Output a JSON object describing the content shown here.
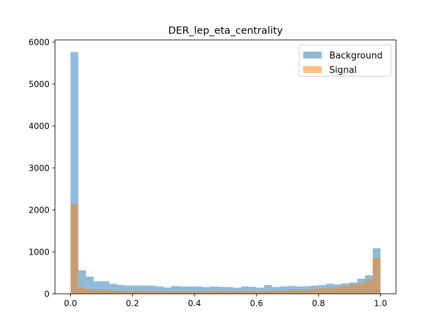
{
  "chart_data": {
    "type": "bar",
    "title": "DER_lep_eta_centrality",
    "xlabel": "",
    "ylabel": "",
    "xlim": [
      -0.05,
      1.05
    ],
    "ylim": [
      0,
      6050
    ],
    "xticks": [
      0.0,
      0.2,
      0.4,
      0.6,
      0.8,
      1.0
    ],
    "xtick_labels": [
      "0.0",
      "0.2",
      "0.4",
      "0.6",
      "0.8",
      "1.0"
    ],
    "yticks": [
      0,
      1000,
      2000,
      3000,
      4000,
      5000,
      6000
    ],
    "ytick_labels": [
      "0",
      "1000",
      "2000",
      "3000",
      "4000",
      "5000",
      "6000"
    ],
    "legend_position": "upper-right",
    "bins": {
      "start": 0.0,
      "end": 1.0,
      "count": 40
    },
    "series": [
      {
        "name": "Background",
        "color": "#1f77b4",
        "alpha": 0.5,
        "values": [
          5760,
          560,
          410,
          300,
          300,
          240,
          210,
          195,
          195,
          195,
          195,
          175,
          150,
          185,
          175,
          175,
          175,
          160,
          175,
          165,
          160,
          145,
          175,
          165,
          145,
          210,
          160,
          175,
          190,
          175,
          180,
          195,
          210,
          240,
          225,
          245,
          270,
          360,
          440,
          1085
        ]
      },
      {
        "name": "Signal",
        "color": "#ff7f0e",
        "alpha": 0.5,
        "values": [
          2140,
          150,
          110,
          95,
          95,
          80,
          65,
          65,
          65,
          60,
          60,
          60,
          60,
          55,
          55,
          55,
          55,
          60,
          60,
          65,
          60,
          65,
          60,
          65,
          60,
          70,
          75,
          80,
          90,
          100,
          100,
          115,
          130,
          145,
          160,
          180,
          220,
          250,
          330,
          860
        ]
      }
    ]
  }
}
